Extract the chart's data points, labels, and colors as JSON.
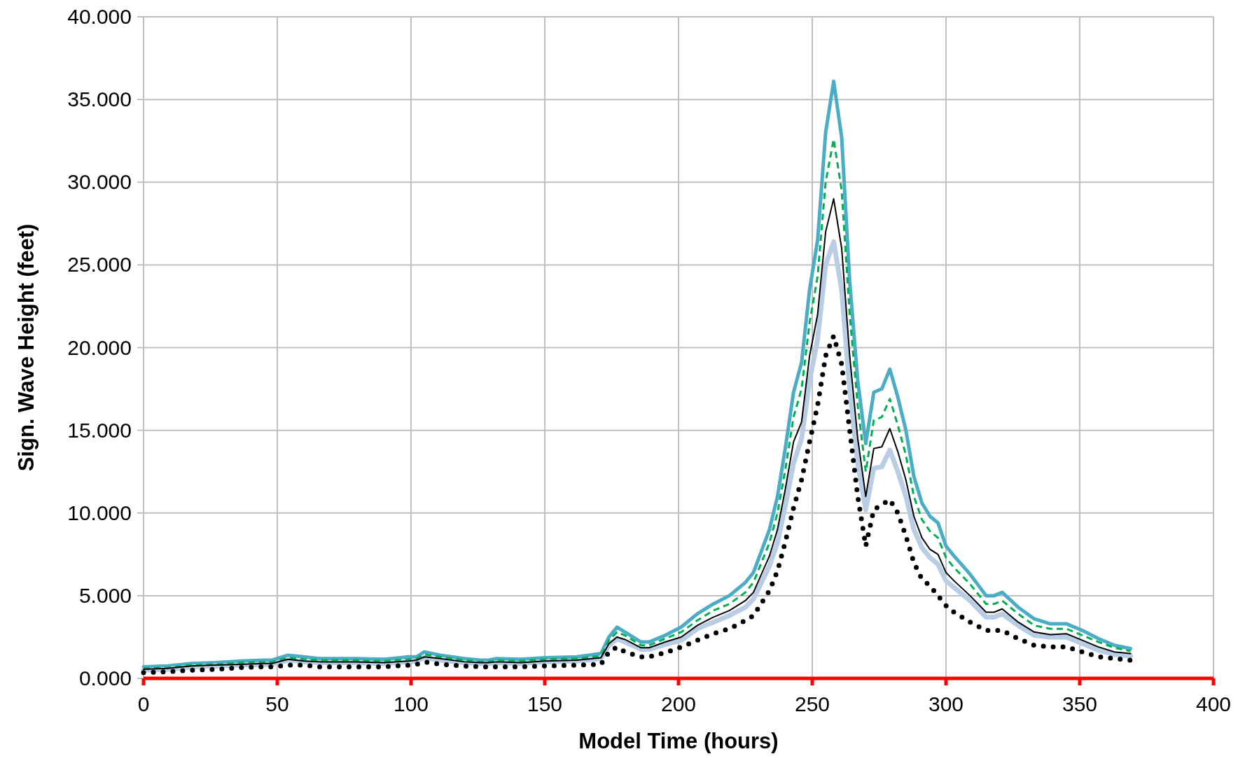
{
  "chart_data": {
    "type": "line",
    "xlabel": "Model Time (hours)",
    "ylabel": "Sign. Wave Height (feet)",
    "x": [
      0,
      9,
      18,
      27,
      36,
      45,
      48,
      54,
      60,
      66,
      78,
      90,
      99,
      102,
      105,
      111,
      120,
      126,
      129,
      132,
      141,
      150,
      162,
      171,
      174,
      177,
      180,
      186,
      189,
      195,
      201,
      207,
      213,
      219,
      225,
      228,
      234,
      237,
      240,
      243,
      246,
      249,
      252,
      255,
      258,
      261,
      264,
      267,
      270,
      273,
      276,
      279,
      282,
      285,
      288,
      291,
      294,
      297,
      300,
      303,
      309,
      315,
      318,
      321,
      327,
      333,
      339,
      345,
      351,
      357,
      363,
      369
    ],
    "series": [
      {
        "color": "#4bacc6",
        "line_style": "solid",
        "values": [
          0.7,
          0.75,
          0.9,
          0.95,
          1.05,
          1.1,
          1.1,
          1.4,
          1.3,
          1.2,
          1.2,
          1.15,
          1.3,
          1.3,
          1.6,
          1.4,
          1.2,
          1.1,
          1.1,
          1.2,
          1.15,
          1.25,
          1.3,
          1.5,
          2.5,
          3.1,
          2.8,
          2.2,
          2.2,
          2.6,
          3.1,
          3.9,
          4.5,
          5.0,
          5.8,
          6.4,
          9.0,
          11.0,
          14.0,
          17.3,
          19.1,
          23.5,
          26.5,
          33.0,
          36.1,
          32.7,
          24.0,
          18.0,
          14.2,
          17.3,
          17.5,
          18.7,
          17.0,
          15.0,
          12.2,
          10.6,
          9.8,
          9.4,
          8.0,
          7.4,
          6.3,
          5.0,
          5.0,
          5.2,
          4.3,
          3.6,
          3.3,
          3.3,
          2.9,
          2.4,
          2.0,
          1.8
        ]
      },
      {
        "color": "#b9cde5",
        "line_style": "solid",
        "values": [
          0.5,
          0.55,
          0.7,
          0.75,
          0.8,
          0.85,
          0.85,
          1.1,
          1.0,
          0.95,
          0.95,
          0.9,
          1.0,
          1.05,
          1.25,
          1.1,
          0.95,
          0.9,
          0.9,
          0.95,
          0.9,
          1.0,
          1.05,
          1.2,
          2.0,
          2.4,
          2.2,
          1.75,
          1.75,
          2.05,
          2.3,
          3.0,
          3.4,
          3.8,
          4.3,
          4.8,
          6.8,
          8.2,
          10.5,
          13.0,
          14.5,
          18.0,
          20.5,
          25.0,
          26.4,
          23.5,
          17.5,
          13.0,
          10.2,
          12.7,
          12.8,
          13.8,
          12.5,
          11.0,
          9.0,
          7.9,
          7.3,
          6.9,
          5.9,
          5.5,
          4.7,
          3.7,
          3.7,
          3.9,
          3.2,
          2.6,
          2.5,
          2.5,
          2.1,
          1.7,
          1.45,
          1.35
        ]
      },
      {
        "color": "#00b050",
        "line_style": "dashed",
        "values": [
          0.6,
          0.65,
          0.8,
          0.85,
          0.95,
          1.0,
          1.0,
          1.25,
          1.15,
          1.1,
          1.1,
          1.05,
          1.15,
          1.2,
          1.45,
          1.3,
          1.1,
          1.0,
          1.0,
          1.1,
          1.05,
          1.15,
          1.2,
          1.35,
          2.3,
          2.8,
          2.6,
          2.0,
          2.0,
          2.4,
          2.8,
          3.5,
          4.1,
          4.5,
          5.2,
          5.8,
          8.2,
          10.0,
          12.7,
          15.8,
          17.5,
          21.5,
          24.3,
          30.0,
          32.6,
          29.5,
          22.0,
          16.5,
          12.5,
          15.6,
          15.8,
          16.9,
          15.3,
          13.5,
          11.0,
          9.6,
          8.9,
          8.5,
          7.3,
          6.7,
          5.7,
          4.5,
          4.5,
          4.7,
          3.9,
          3.2,
          3.0,
          3.0,
          2.6,
          2.2,
          1.85,
          1.65
        ]
      },
      {
        "color": "#000000",
        "line_style": "solid",
        "values": [
          0.55,
          0.6,
          0.75,
          0.8,
          0.85,
          0.9,
          0.9,
          1.15,
          1.05,
          1.0,
          1.0,
          0.95,
          1.05,
          1.1,
          1.3,
          1.2,
          1.0,
          0.95,
          0.95,
          1.0,
          0.95,
          1.05,
          1.1,
          1.25,
          2.1,
          2.5,
          2.35,
          1.85,
          1.85,
          2.2,
          2.5,
          3.2,
          3.7,
          4.1,
          4.7,
          5.2,
          7.4,
          9.0,
          11.5,
          14.3,
          15.5,
          19.5,
          22.0,
          27.0,
          29.0,
          26.0,
          19.5,
          14.5,
          11.0,
          13.9,
          14.0,
          15.1,
          13.7,
          12.0,
          9.8,
          8.5,
          7.8,
          7.5,
          6.4,
          5.9,
          5.0,
          4.0,
          4.0,
          4.2,
          3.4,
          2.8,
          2.65,
          2.7,
          2.3,
          1.9,
          1.6,
          1.5
        ]
      },
      {
        "color": "#000000",
        "line_style": "dotted",
        "values": [
          0.35,
          0.4,
          0.5,
          0.55,
          0.65,
          0.7,
          0.7,
          0.8,
          0.8,
          0.7,
          0.7,
          0.7,
          0.8,
          0.85,
          1.0,
          0.85,
          0.75,
          0.7,
          0.7,
          0.7,
          0.7,
          0.75,
          0.8,
          0.85,
          1.6,
          1.9,
          1.6,
          1.3,
          1.3,
          1.55,
          1.9,
          2.3,
          2.7,
          3.0,
          3.5,
          3.8,
          5.3,
          6.5,
          8.3,
          10.3,
          12.0,
          14.3,
          16.5,
          19.5,
          20.7,
          19.0,
          15.0,
          11.0,
          8.0,
          10.2,
          10.5,
          10.8,
          10.0,
          8.6,
          7.0,
          6.0,
          5.6,
          5.0,
          4.4,
          4.0,
          3.4,
          2.9,
          2.9,
          2.9,
          2.4,
          2.0,
          1.9,
          1.9,
          1.6,
          1.3,
          1.2,
          1.1
        ]
      }
    ],
    "xlim": [
      0,
      400
    ],
    "xticks": [
      0,
      50,
      100,
      150,
      200,
      250,
      300,
      350,
      400
    ],
    "ylim": [
      0,
      40
    ],
    "yticks": [
      {
        "value": 0,
        "label": "0.000"
      },
      {
        "value": 5,
        "label": "5.000"
      },
      {
        "value": 10,
        "label": "10.000"
      },
      {
        "value": 15,
        "label": "15.000"
      },
      {
        "value": 20,
        "label": "20.000"
      },
      {
        "value": 25,
        "label": "25.000"
      },
      {
        "value": 30,
        "label": "30.000"
      },
      {
        "value": 35,
        "label": "35.000"
      },
      {
        "value": 40,
        "label": "40.000"
      }
    ],
    "grid": true
  }
}
